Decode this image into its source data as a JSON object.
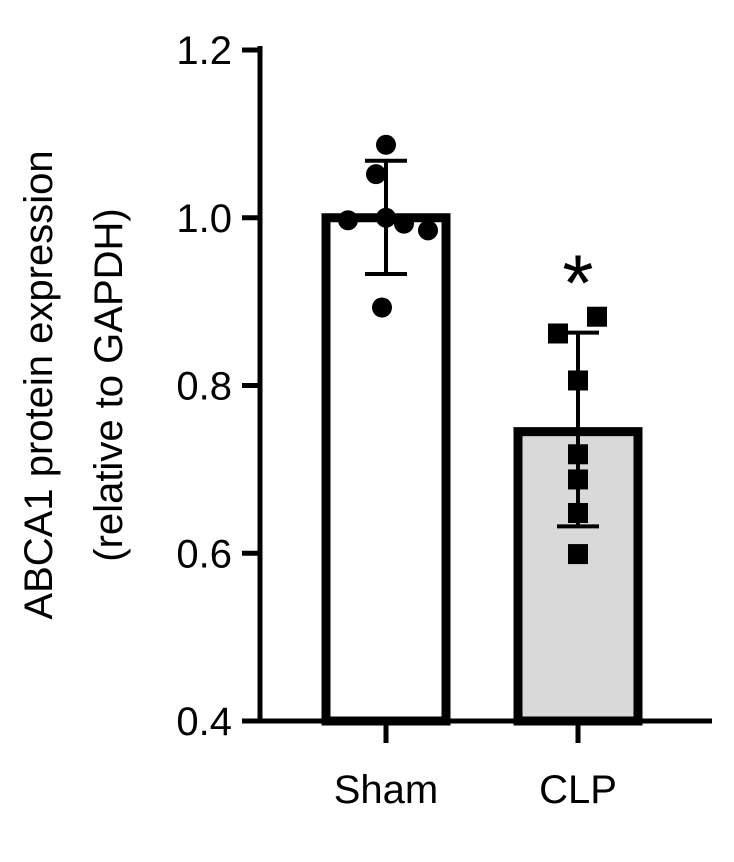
{
  "chart_data": {
    "type": "bar",
    "categories": [
      "Sham",
      "CLP"
    ],
    "ylabel_line1": "ABCA1 protein expression",
    "ylabel_line2": "(relative to GAPDH)",
    "ylim": [
      0.4,
      1.2
    ],
    "yticks": [
      0.4,
      0.6,
      0.8,
      1.0,
      1.2
    ],
    "ytick_labels": [
      "0.4",
      "0.6",
      "0.8",
      "1.0",
      "1.2"
    ],
    "grid": false,
    "series": [
      {
        "category": "Sham",
        "mean": 1.0,
        "sd_low": 0.933,
        "sd_high": 1.068,
        "fill": "#ffffff",
        "marker": "circle",
        "points": [
          1.087,
          1.052,
          1.0,
          0.997,
          0.993,
          0.985,
          0.893
        ],
        "annotation": ""
      },
      {
        "category": "CLP",
        "mean": 0.745,
        "sd_low": 0.632,
        "sd_high": 0.863,
        "fill": "#d9d9d9",
        "marker": "square",
        "points": [
          0.882,
          0.862,
          0.806,
          0.718,
          0.688,
          0.648,
          0.599
        ],
        "annotation": "*"
      }
    ]
  }
}
